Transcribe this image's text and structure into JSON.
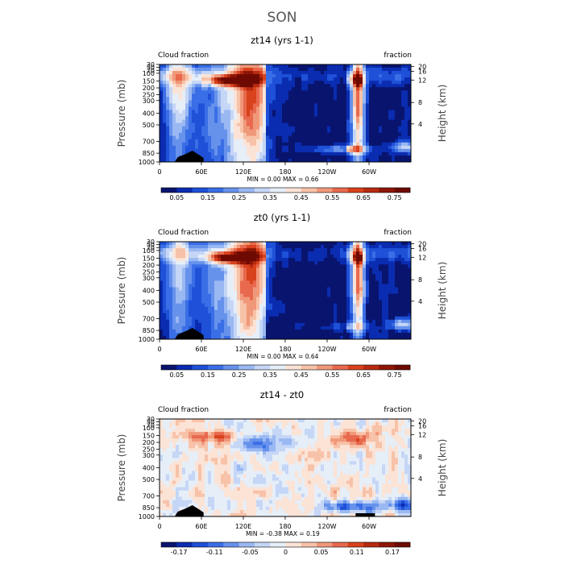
{
  "title": "SON",
  "chart_data": [
    {
      "type": "heatmap",
      "title": "zt14 (yrs 1-1)",
      "left_label": "Cloud fraction",
      "right_label": "fraction",
      "ylabel": "Pressure (mb)",
      "ylabel_right": "Height (km)",
      "x_ticks": [
        "0",
        "60E",
        "120E",
        "180",
        "120W",
        "60W"
      ],
      "y_ticks": [
        "30",
        "50",
        "70",
        "100",
        "150",
        "200",
        "250",
        "300",
        "400",
        "500",
        "700",
        "850",
        "1000"
      ],
      "height_ticks": [
        "20",
        "16",
        "12",
        "8",
        "4"
      ],
      "min_label": "MIN = ",
      "min_value": "0.00",
      "max_label": "MAX = ",
      "max_value": "0.66",
      "colorbar_ticks": [
        "0.05",
        "0.15",
        "0.25",
        "0.35",
        "0.45",
        "0.55",
        "0.65",
        "0.75"
      ],
      "colorbar_colors": [
        "#08146e",
        "#0a2cb0",
        "#1e50d8",
        "#3a6ee6",
        "#6692ec",
        "#9ab8f2",
        "#c5d6f6",
        "#e6eef8",
        "#fbe3d6",
        "#f7c2a8",
        "#f0987a",
        "#e8694e",
        "#d8421c",
        "#b82a10",
        "#8e1606",
        "#6e0a02"
      ],
      "levels_min": 0.0,
      "levels_max": 0.8,
      "xlim": [
        0,
        360
      ],
      "ylim": [
        1000,
        30
      ]
    },
    {
      "type": "heatmap",
      "title": "zt0 (yrs 1-1)",
      "left_label": "Cloud fraction",
      "right_label": "fraction",
      "ylabel": "Pressure (mb)",
      "ylabel_right": "Height (km)",
      "x_ticks": [
        "0",
        "60E",
        "120E",
        "180",
        "120W",
        "60W"
      ],
      "y_ticks": [
        "30",
        "50",
        "70",
        "100",
        "150",
        "200",
        "250",
        "300",
        "400",
        "500",
        "700",
        "850",
        "1000"
      ],
      "height_ticks": [
        "20",
        "16",
        "12",
        "8",
        "4"
      ],
      "min_label": "MIN = ",
      "min_value": "0.00",
      "max_label": "MAX = ",
      "max_value": "0.64",
      "colorbar_ticks": [
        "0.05",
        "0.15",
        "0.25",
        "0.35",
        "0.45",
        "0.55",
        "0.65",
        "0.75"
      ],
      "colorbar_colors": [
        "#08146e",
        "#0a2cb0",
        "#1e50d8",
        "#3a6ee6",
        "#6692ec",
        "#9ab8f2",
        "#c5d6f6",
        "#e6eef8",
        "#fbe3d6",
        "#f7c2a8",
        "#f0987a",
        "#e8694e",
        "#d8421c",
        "#b82a10",
        "#8e1606",
        "#6e0a02"
      ],
      "levels_min": 0.0,
      "levels_max": 0.8,
      "xlim": [
        0,
        360
      ],
      "ylim": [
        1000,
        30
      ]
    },
    {
      "type": "heatmap",
      "title": "zt14 - zt0",
      "left_label": "Cloud fraction",
      "right_label": "fraction",
      "ylabel": "Pressure (mb)",
      "ylabel_right": "Height (km)",
      "x_ticks": [
        "0",
        "60E",
        "120E",
        "180",
        "120W",
        "60W"
      ],
      "y_ticks": [
        "30",
        "50",
        "70",
        "100",
        "150",
        "200",
        "250",
        "300",
        "400",
        "500",
        "700",
        "850",
        "1000"
      ],
      "height_ticks": [
        "20",
        "16",
        "12",
        "8",
        "4"
      ],
      "min_label": "MIN = ",
      "min_value": "-0.38",
      "max_label": "MAX = ",
      "max_value": "0.19",
      "colorbar_ticks": [
        "-0.17",
        "-0.11",
        "-0.05",
        "0",
        "0.05",
        "0.11",
        "0.17"
      ],
      "colorbar_colors": [
        "#08146e",
        "#0a2cb0",
        "#1e50d8",
        "#3a6ee6",
        "#6692ec",
        "#9ab8f2",
        "#c5d6f6",
        "#e6eef8",
        "#fbe3d6",
        "#f7c2a8",
        "#f0987a",
        "#e8694e",
        "#d8421c",
        "#b82a10",
        "#8e1606",
        "#6e0a02"
      ],
      "levels_min": -0.23,
      "levels_max": 0.23,
      "xlim": [
        0,
        360
      ],
      "ylim": [
        1000,
        30
      ]
    }
  ]
}
